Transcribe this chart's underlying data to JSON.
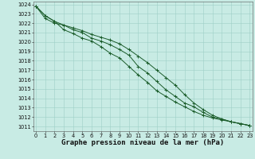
{
  "title": "Graphe pression niveau de la mer (hPa)",
  "background_color": "#c8ebe4",
  "grid_color": "#9dcfc7",
  "line_color": "#1a5c2a",
  "xlim": [
    -0.3,
    23.3
  ],
  "ylim": [
    1010.5,
    1024.3
  ],
  "yticks": [
    1011,
    1012,
    1013,
    1014,
    1015,
    1016,
    1017,
    1018,
    1019,
    1020,
    1021,
    1022,
    1023,
    1024
  ],
  "xticks": [
    0,
    1,
    2,
    3,
    4,
    5,
    6,
    7,
    8,
    9,
    10,
    11,
    12,
    13,
    14,
    15,
    16,
    17,
    18,
    19,
    20,
    21,
    22,
    23
  ],
  "series1": [
    1023.8,
    1022.8,
    1022.2,
    1021.8,
    1021.3,
    1021.0,
    1020.4,
    1020.1,
    1019.7,
    1019.2,
    1018.6,
    1017.4,
    1016.7,
    1015.8,
    1014.9,
    1014.2,
    1013.5,
    1013.1,
    1012.5,
    1012.0,
    1011.8,
    1011.5,
    1011.3,
    1011.1
  ],
  "series2": [
    1023.8,
    1022.8,
    1022.2,
    1021.3,
    1020.9,
    1020.4,
    1020.1,
    1019.5,
    1018.8,
    1018.3,
    1017.4,
    1016.5,
    1015.7,
    1014.8,
    1014.2,
    1013.6,
    1013.1,
    1012.6,
    1012.2,
    1011.9,
    1011.7,
    1011.5,
    1011.3,
    1011.1
  ],
  "series3": [
    1023.8,
    1022.5,
    1022.0,
    1021.8,
    1021.5,
    1021.2,
    1020.8,
    1020.5,
    1020.2,
    1019.8,
    1019.2,
    1018.5,
    1017.8,
    1017.0,
    1016.2,
    1015.4,
    1014.4,
    1013.5,
    1012.8,
    1012.2,
    1011.8,
    1011.5,
    1011.3,
    1011.1
  ],
  "marker": "+",
  "markersize": 3,
  "linewidth": 0.7,
  "title_fontsize": 6.5,
  "tick_fontsize": 4.8
}
